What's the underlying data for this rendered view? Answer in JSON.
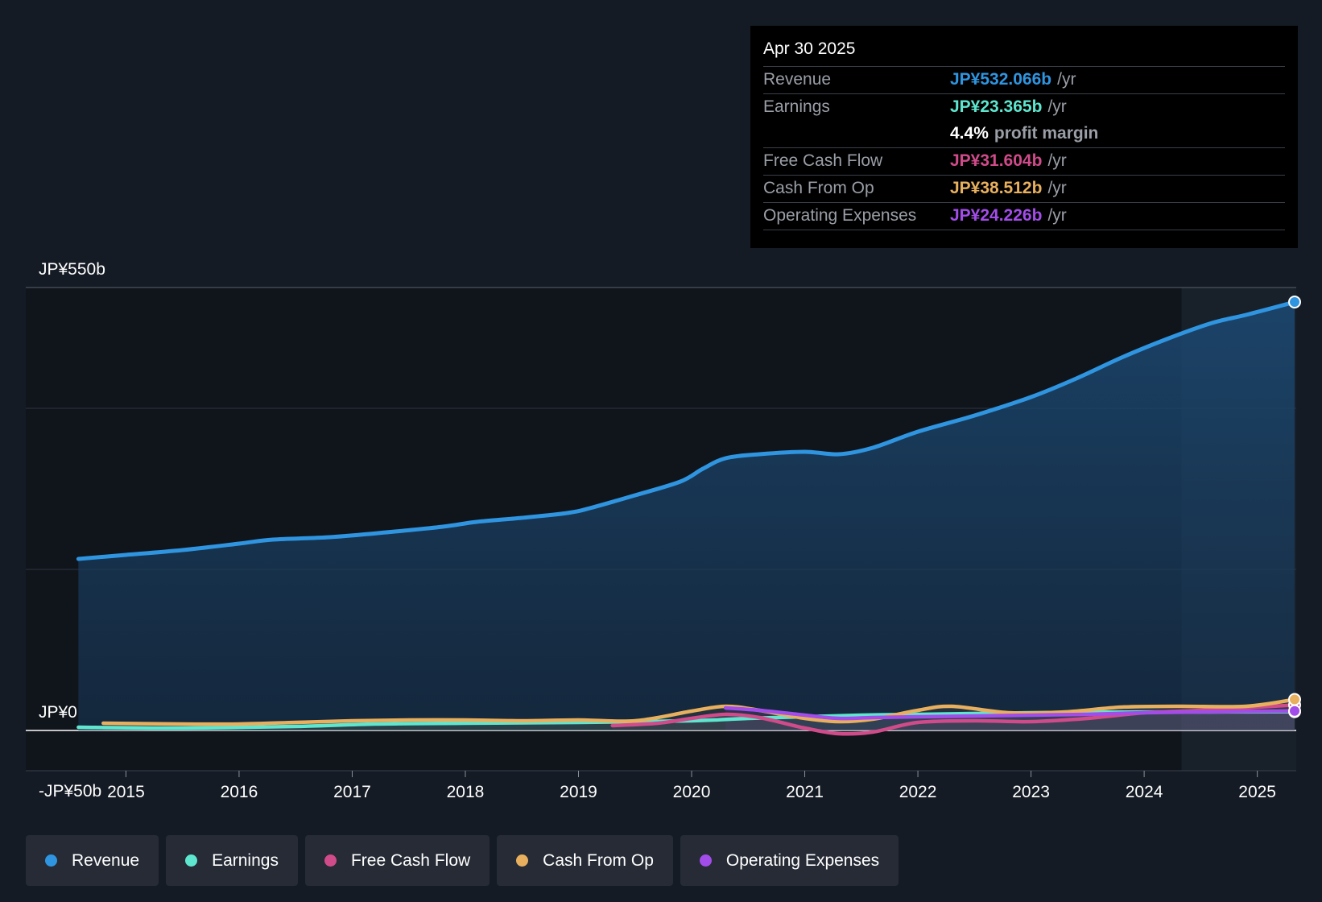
{
  "tooltip": {
    "date": "Apr 30 2025",
    "rows": [
      {
        "label": "Revenue",
        "value": "JP¥532.066b",
        "unit": "/yr",
        "color": "#2f95e0"
      },
      {
        "label": "Earnings",
        "value": "JP¥23.365b",
        "unit": "/yr",
        "color": "#5ee6cf"
      },
      {
        "label": "",
        "value": "4.4%",
        "unit": "profit margin",
        "color": "#ffffff"
      },
      {
        "label": "Free Cash Flow",
        "value": "JP¥31.604b",
        "unit": "/yr",
        "color": "#d04b8a"
      },
      {
        "label": "Cash From Op",
        "value": "JP¥38.512b",
        "unit": "/yr",
        "color": "#e8b05e"
      },
      {
        "label": "Operating Expenses",
        "value": "JP¥24.226b",
        "unit": "/yr",
        "color": "#a24de9"
      }
    ]
  },
  "legend": [
    {
      "label": "Revenue",
      "color": "#2f95e0"
    },
    {
      "label": "Earnings",
      "color": "#5ee6cf"
    },
    {
      "label": "Free Cash Flow",
      "color": "#d04b8a"
    },
    {
      "label": "Cash From Op",
      "color": "#e8b05e"
    },
    {
      "label": "Operating Expenses",
      "color": "#a24de9"
    }
  ],
  "chart_data": {
    "type": "line",
    "title": "",
    "xlabel": "",
    "ylabel": "",
    "ylim": [
      -50,
      550
    ],
    "y_tick_labels": [
      {
        "value": 550,
        "label": "JP¥550b"
      },
      {
        "value": 0,
        "label": "JP¥0"
      },
      {
        "value": -50,
        "label": "-JP¥50b"
      }
    ],
    "gridlines": [
      550,
      400,
      200,
      0
    ],
    "xlim": [
      2014.57,
      2025.33
    ],
    "x_ticks": [
      2015,
      2016,
      2017,
      2018,
      2019,
      2020,
      2021,
      2022,
      2023,
      2024,
      2025
    ],
    "x_tick_labels": [
      "2015",
      "2016",
      "2017",
      "2018",
      "2019",
      "2020",
      "2021",
      "2022",
      "2023",
      "2024",
      "2025"
    ],
    "shaded_region_start": 2024.33,
    "series": [
      {
        "name": "Revenue",
        "color": "#2f95e0",
        "area": true,
        "x": [
          2014.58,
          2015.0,
          2015.5,
          2016.0,
          2016.3,
          2016.8,
          2017.3,
          2017.8,
          2018.1,
          2018.5,
          2018.9,
          2019.1,
          2019.5,
          2019.9,
          2020.1,
          2020.3,
          2020.6,
          2021.0,
          2021.3,
          2021.6,
          2022.0,
          2022.5,
          2023.0,
          2023.4,
          2023.8,
          2024.2,
          2024.6,
          2024.9,
          2025.33
        ],
        "values": [
          213,
          218,
          224,
          232,
          237,
          240,
          246,
          253,
          259,
          264,
          270,
          276,
          292,
          309,
          325,
          338,
          343,
          346,
          343,
          351,
          371,
          391,
          414,
          437,
          463,
          486,
          506,
          516,
          532
        ]
      },
      {
        "name": "Earnings",
        "color": "#5ee6cf",
        "area": false,
        "x": [
          2014.58,
          2015.5,
          2016.5,
          2017.2,
          2018.0,
          2019.0,
          2020.0,
          2020.5,
          2021.0,
          2021.5,
          2022.0,
          2023.0,
          2024.0,
          2024.6,
          2025.33
        ],
        "values": [
          4,
          3,
          5,
          8,
          9,
          10,
          12,
          15,
          17,
          19,
          20,
          22,
          23,
          23,
          23.4
        ]
      },
      {
        "name": "Free Cash Flow",
        "color": "#d04b8a",
        "area": false,
        "x": [
          2019.3,
          2019.7,
          2020.0,
          2020.3,
          2020.6,
          2021.0,
          2021.3,
          2021.6,
          2022.0,
          2022.5,
          2023.0,
          2023.5,
          2024.0,
          2024.5,
          2025.33
        ],
        "values": [
          6,
          9,
          15,
          20,
          16,
          3,
          -4,
          -2,
          10,
          12,
          11,
          15,
          22,
          25,
          31.6
        ]
      },
      {
        "name": "Cash From Op",
        "color": "#e8b05e",
        "area": false,
        "x": [
          2014.8,
          2015.5,
          2016.0,
          2016.5,
          2017.0,
          2017.5,
          2018.0,
          2018.5,
          2019.0,
          2019.5,
          2020.0,
          2020.3,
          2020.6,
          2021.0,
          2021.3,
          2021.6,
          2022.0,
          2022.3,
          2022.8,
          2023.3,
          2023.8,
          2024.3,
          2024.9,
          2025.33
        ],
        "values": [
          9,
          8,
          8,
          10,
          12,
          13,
          13,
          12,
          13,
          12,
          24,
          30,
          25,
          15,
          11,
          14,
          25,
          30,
          22,
          23,
          29,
          30,
          30,
          38.5
        ]
      },
      {
        "name": "Operating Expenses",
        "color": "#a24de9",
        "area": false,
        "x": [
          2020.3,
          2020.6,
          2021.0,
          2021.3,
          2021.6,
          2022.0,
          2022.5,
          2023.0,
          2023.5,
          2024.0,
          2024.5,
          2025.33
        ],
        "values": [
          28,
          25,
          19,
          15,
          16,
          17,
          18,
          19,
          20,
          22,
          23,
          24.2
        ]
      }
    ]
  }
}
